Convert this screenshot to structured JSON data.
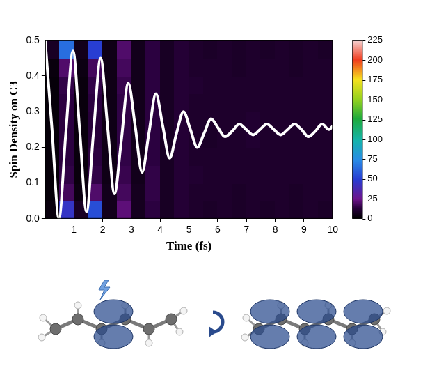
{
  "chart_data": {
    "type": "line",
    "x_label": "Time (fs)",
    "y_label": "Spin Density on C3",
    "xlim": [
      0,
      10
    ],
    "xticks": [
      1,
      2,
      3,
      4,
      5,
      6,
      7,
      8,
      9,
      10
    ],
    "ylim": [
      0,
      0.5
    ],
    "yticks": [
      {
        "value": 0,
        "label": "0.0"
      },
      0.1,
      0.2,
      0.3,
      0.4,
      0.5
    ],
    "grid": false,
    "color": "#ffffff",
    "x": [
      0,
      0.24,
      0.48,
      0.72,
      0.97,
      1.2,
      1.44,
      1.68,
      1.93,
      2.17,
      2.41,
      2.65,
      2.89,
      3.13,
      3.37,
      3.61,
      3.85,
      4.09,
      4.33,
      4.57,
      4.81,
      5.05,
      5.29,
      5.53,
      5.77,
      6.01,
      6.25,
      6.5,
      6.75,
      6.99,
      7.23,
      7.47,
      7.71,
      7.95,
      8.19,
      8.43,
      8.67,
      8.91,
      9.15,
      9.39,
      9.63,
      9.87,
      10
    ],
    "values": [
      0.5,
      0.25,
      0,
      0.24,
      0.47,
      0.25,
      0.02,
      0.24,
      0.45,
      0.26,
      0.07,
      0.22,
      0.38,
      0.26,
      0.13,
      0.24,
      0.35,
      0.26,
      0.17,
      0.24,
      0.3,
      0.25,
      0.2,
      0.24,
      0.28,
      0.255,
      0.23,
      0.245,
      0.265,
      0.25,
      0.235,
      0.25,
      0.265,
      0.25,
      0.235,
      0.25,
      0.265,
      0.25,
      0.23,
      0.245,
      0.265,
      0.25,
      0.26
    ],
    "heatmap": {
      "x_edges": [
        0,
        0.5,
        1,
        1.5,
        2,
        2.5,
        3,
        3.5,
        4,
        4.5,
        5,
        5.5,
        6,
        6.5,
        7,
        7.5,
        8,
        8.5,
        9,
        9.5,
        10
      ],
      "y_edges": [
        0,
        0.05,
        0.1,
        0.15,
        0.2,
        0.25,
        0.3,
        0.35,
        0.4,
        0.45,
        0.5
      ],
      "counts": [
        [
          3,
          2,
          2,
          2,
          2,
          2,
          2,
          2,
          3,
          8
        ],
        [
          45,
          18,
          15,
          14,
          14,
          14,
          14,
          15,
          20,
          65
        ],
        [
          8,
          4,
          3,
          3,
          3,
          3,
          3,
          3,
          4,
          6
        ],
        [
          55,
          20,
          15,
          14,
          13,
          13,
          14,
          15,
          18,
          50
        ],
        [
          6,
          6,
          5,
          5,
          5,
          5,
          5,
          5,
          5,
          5
        ],
        [
          22,
          18,
          16,
          15,
          15,
          15,
          15,
          16,
          18,
          20
        ],
        [
          7,
          7,
          6,
          6,
          6,
          6,
          6,
          6,
          6,
          6
        ],
        [
          14,
          15,
          15,
          14,
          14,
          14,
          14,
          14,
          14,
          14
        ],
        [
          8,
          8,
          8,
          8,
          8,
          8,
          8,
          8,
          8,
          8
        ],
        [
          12,
          12,
          12,
          12,
          12,
          12,
          12,
          12,
          12,
          12
        ],
        [
          10,
          10,
          11,
          10,
          10,
          10,
          10,
          11,
          10,
          10
        ],
        [
          9,
          10,
          10,
          10,
          9,
          10,
          10,
          10,
          10,
          9
        ],
        [
          10,
          10,
          10,
          10,
          10,
          10,
          10,
          10,
          10,
          10
        ],
        [
          9,
          9,
          10,
          10,
          10,
          10,
          10,
          10,
          9,
          9
        ],
        [
          10,
          10,
          10,
          10,
          11,
          11,
          10,
          10,
          10,
          10
        ],
        [
          9,
          10,
          10,
          10,
          10,
          10,
          10,
          10,
          10,
          9
        ],
        [
          10,
          10,
          10,
          10,
          10,
          10,
          10,
          10,
          10,
          10
        ],
        [
          9,
          9,
          10,
          10,
          10,
          10,
          10,
          10,
          9,
          9
        ],
        [
          10,
          10,
          10,
          10,
          10,
          10,
          10,
          10,
          10,
          10
        ],
        [
          9,
          10,
          10,
          10,
          10,
          10,
          10,
          10,
          10,
          9
        ]
      ]
    },
    "colorbar": {
      "range": [
        0,
        225
      ],
      "ticks": [
        0,
        25,
        50,
        75,
        100,
        125,
        150,
        175,
        200,
        225
      ]
    }
  }
}
